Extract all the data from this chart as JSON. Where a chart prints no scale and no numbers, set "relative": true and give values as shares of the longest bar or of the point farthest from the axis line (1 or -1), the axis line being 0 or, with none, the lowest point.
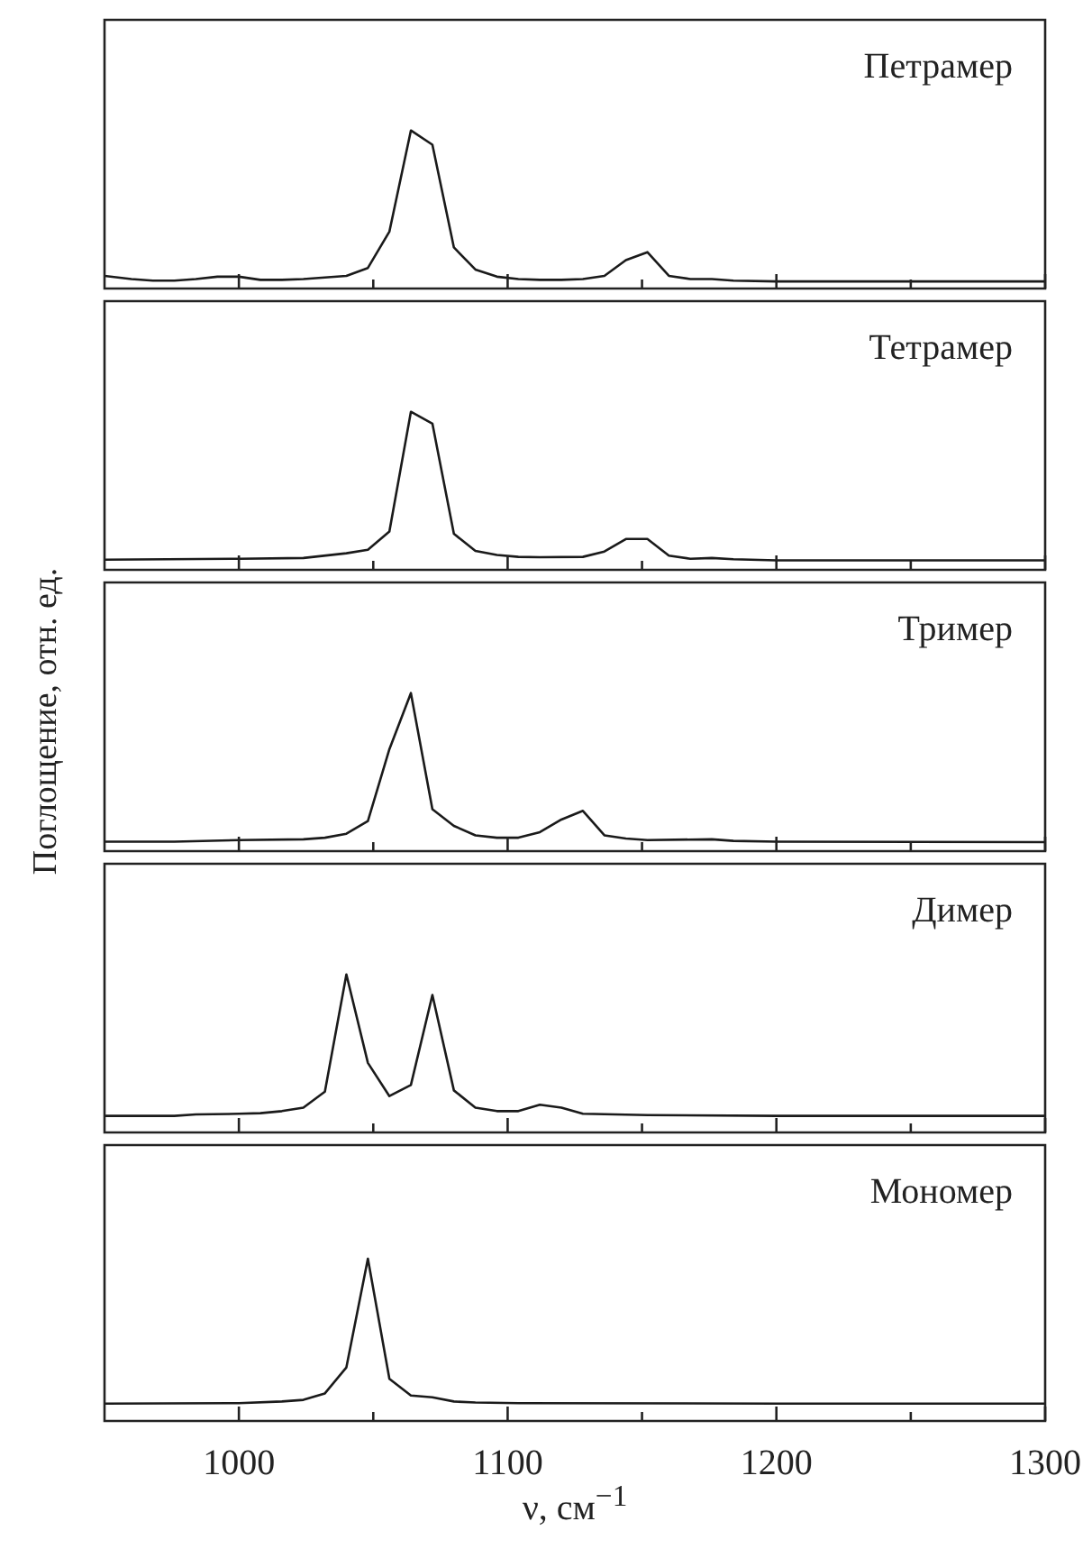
{
  "chart_data": [
    {
      "type": "line",
      "title": "Петрамер",
      "x": [
        950,
        960,
        968,
        976,
        984,
        992,
        1000,
        1008,
        1016,
        1024,
        1032,
        1040,
        1048,
        1056,
        1064,
        1072,
        1080,
        1088,
        1096,
        1104,
        1112,
        1120,
        1128,
        1136,
        1144,
        1152,
        1160,
        1168,
        1176,
        1184,
        1200,
        1250,
        1300
      ],
      "relative": true,
      "xlim": [
        950,
        1300
      ],
      "xticks": [
        1000,
        {
          "value": 1050,
          "label": null
        },
        1100,
        {
          "value": 1150,
          "label": null
        },
        1200,
        {
          "value": 1250,
          "label": null
        },
        1300
      ],
      "tick_labels": false,
      "series": [
        {
          "color": "#1a1a1a",
          "values": [
            0.08,
            0.06,
            0.05,
            0.05,
            0.06,
            0.075,
            0.075,
            0.055,
            0.055,
            0.06,
            0.07,
            0.08,
            0.13,
            0.36,
            1,
            0.91,
            0.26,
            0.12,
            0.075,
            0.06,
            0.055,
            0.055,
            0.06,
            0.08,
            0.18,
            0.23,
            0.08,
            0.06,
            0.06,
            0.05,
            0.045,
            0.045,
            0.045
          ]
        }
      ]
    },
    {
      "type": "line",
      "title": "Тетрамер",
      "x": [
        950,
        1000,
        1024,
        1040,
        1048,
        1056,
        1064,
        1072,
        1080,
        1088,
        1096,
        1104,
        1112,
        1128,
        1136,
        1144,
        1152,
        1160,
        1168,
        1176,
        1184,
        1200,
        1300
      ],
      "relative": true,
      "xlim": [
        950,
        1300
      ],
      "xticks": [
        1000,
        {
          "value": 1050,
          "label": null
        },
        1100,
        {
          "value": 1150,
          "label": null
        },
        1200,
        {
          "value": 1250,
          "label": null
        },
        1300
      ],
      "tick_labels": false,
      "series": [
        {
          "color": "#1a1a1a",
          "values": [
            0.064,
            0.07,
            0.075,
            0.105,
            0.127,
            0.243,
            1,
            0.925,
            0.228,
            0.12,
            0.094,
            0.082,
            0.08,
            0.082,
            0.116,
            0.195,
            0.195,
            0.09,
            0.07,
            0.075,
            0.067,
            0.06,
            0.06
          ]
        }
      ]
    },
    {
      "type": "line",
      "title": "Тример",
      "ylabel": "Поглощение, отн. ед.",
      "x": [
        950,
        976,
        1000,
        1024,
        1032,
        1040,
        1048,
        1056,
        1064,
        1072,
        1080,
        1088,
        1096,
        1104,
        1112,
        1120,
        1128,
        1136,
        1144,
        1152,
        1176,
        1184,
        1200,
        1300
      ],
      "relative": true,
      "xlim": [
        950,
        1300
      ],
      "xticks": [
        1000,
        {
          "value": 1050,
          "label": null
        },
        1100,
        {
          "value": 1150,
          "label": null
        },
        1200,
        {
          "value": 1250,
          "label": null
        },
        1300
      ],
      "tick_labels": false,
      "series": [
        {
          "color": "#1a1a1a",
          "values": [
            0.06,
            0.06,
            0.07,
            0.075,
            0.085,
            0.11,
            0.19,
            0.645,
            1,
            0.265,
            0.16,
            0.1,
            0.085,
            0.085,
            0.12,
            0.2,
            0.255,
            0.1,
            0.08,
            0.07,
            0.075,
            0.065,
            0.06,
            0.057
          ]
        }
      ]
    },
    {
      "type": "line",
      "title": "Димер",
      "x": [
        950,
        976,
        984,
        1000,
        1008,
        1016,
        1024,
        1032,
        1040,
        1048,
        1056,
        1064,
        1072,
        1080,
        1088,
        1096,
        1104,
        1112,
        1120,
        1128,
        1152,
        1200,
        1300
      ],
      "relative": true,
      "xlim": [
        950,
        1300
      ],
      "xticks": [
        1000,
        {
          "value": 1050,
          "label": null
        },
        1100,
        {
          "value": 1150,
          "label": null
        },
        1200,
        {
          "value": 1250,
          "label": null
        },
        1300
      ],
      "tick_labels": false,
      "series": [
        {
          "color": "#1a1a1a",
          "values": [
            0.105,
            0.105,
            0.114,
            0.118,
            0.122,
            0.135,
            0.157,
            0.258,
            1,
            0.44,
            0.23,
            0.3,
            0.87,
            0.266,
            0.157,
            0.135,
            0.135,
            0.175,
            0.157,
            0.118,
            0.11,
            0.105,
            0.105
          ]
        }
      ]
    },
    {
      "type": "line",
      "title": "Мономер",
      "xlabel": "ν, см$^{−1}$",
      "x": [
        950,
        1000,
        1016,
        1024,
        1032,
        1040,
        1048,
        1056,
        1064,
        1072,
        1080,
        1088,
        1104,
        1200,
        1300
      ],
      "relative": true,
      "xlim": [
        950,
        1300
      ],
      "xticks": [
        1000,
        {
          "value": 1050,
          "label": null
        },
        1100,
        {
          "value": 1150,
          "label": null
        },
        1200,
        {
          "value": 1250,
          "label": null
        },
        1300
      ],
      "tick_labels": "x",
      "series": [
        {
          "color": "#1a1a1a",
          "values": [
            0.107,
            0.11,
            0.12,
            0.13,
            0.17,
            0.33,
            1,
            0.26,
            0.157,
            0.146,
            0.12,
            0.114,
            0.11,
            0.107,
            0.107
          ]
        }
      ]
    }
  ]
}
